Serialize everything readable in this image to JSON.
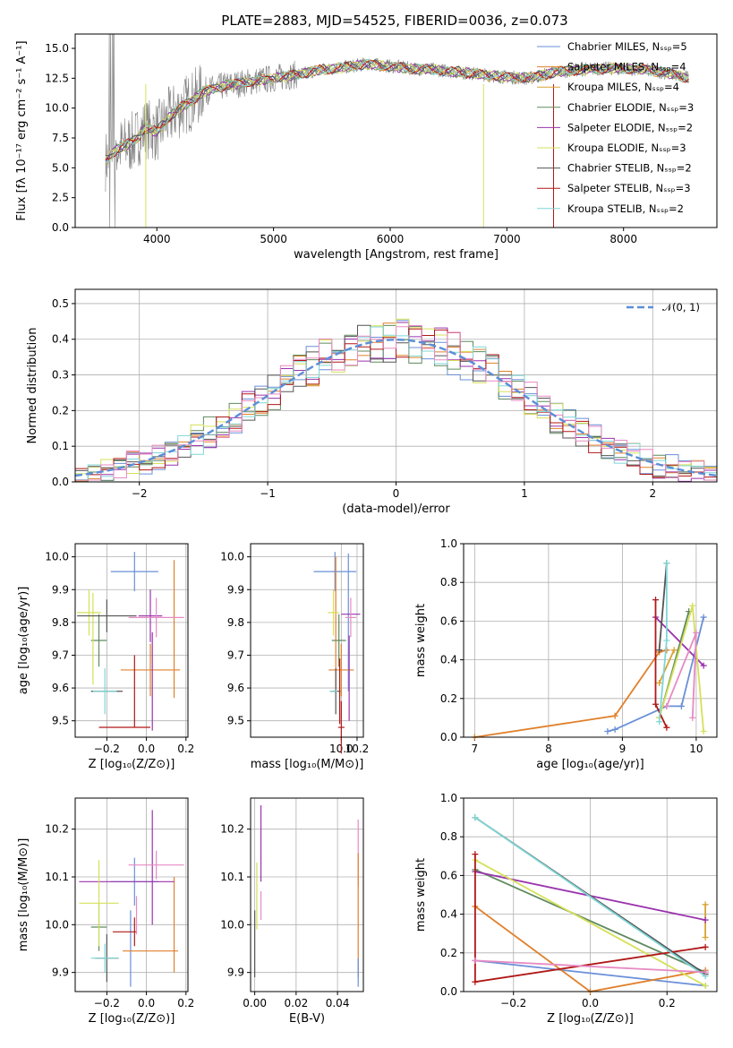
{
  "colors": {
    "c_miles": "#6a8fd8",
    "s_miles": "#e0802c",
    "k_miles": "#d9a232",
    "c_elodie": "#5f8a5f",
    "s_elodie": "#9a33ad",
    "k_elodie": "#d6e05a",
    "c_stelib": "#555555",
    "s_stelib": "#b01818",
    "k_stelib": "#7fd6d6",
    "gray_flux": "#808080",
    "hist": [
      "#6a8fd8",
      "#e0802c",
      "#5f8a5f",
      "#9a33ad",
      "#d6e05a",
      "#555555",
      "#b01818",
      "#7fd6d6",
      "#e78ac3"
    ]
  },
  "chart_data": [
    {
      "id": "spectrum",
      "type": "line",
      "title": "PLATE=2883, MJD=54525, FIBERID=0036, z=0.073",
      "xlabel": "wavelength [Angstrom, rest frame]",
      "ylabel": "Flux [fλ 10⁻¹⁷ erg cm⁻² s⁻¹ A⁻¹]",
      "xlim": [
        3300,
        8800
      ],
      "ylim": [
        0,
        16.2
      ],
      "xticks": [
        4000,
        5000,
        6000,
        7000,
        8000
      ],
      "yticks": [
        0.0,
        2.5,
        5.0,
        7.5,
        10.0,
        12.5,
        15.0
      ],
      "legend_position": "top-right",
      "series": [
        {
          "name": "Chabrier MILES, Nₛₛₚ=5"
        },
        {
          "name": "Salpeter MILES, Nₛₛₚ=4"
        },
        {
          "name": "Kroupa MILES, Nₛₛₚ=4"
        },
        {
          "name": "Chabrier ELODIE, Nₛₛₚ=3"
        },
        {
          "name": "Salpeter ELODIE, Nₛₛₚ=2"
        },
        {
          "name": "Kroupa ELODIE, Nₛₛₚ=3"
        },
        {
          "name": "Chabrier STELIB, Nₛₛₚ=2"
        },
        {
          "name": "Salpeter STELIB, Nₛₛₚ=3"
        },
        {
          "name": "Kroupa STELIB, Nₛₛₚ=2"
        }
      ],
      "continuum": {
        "x": [
          3550,
          3650,
          3800,
          3900,
          4000,
          4100,
          4200,
          4300,
          4400,
          4600,
          4800,
          5000,
          5200,
          5400,
          5600,
          5800,
          6000,
          6200,
          6400,
          6600,
          6800,
          7000,
          7200,
          7400,
          7600,
          7800,
          8000,
          8200,
          8400,
          8600
        ],
        "y": [
          5.5,
          6.5,
          7.2,
          8.3,
          8.0,
          9.2,
          10.0,
          10.6,
          11.4,
          11.9,
          12.2,
          12.5,
          12.8,
          13.2,
          13.4,
          13.7,
          13.5,
          13.3,
          13.2,
          13.0,
          12.8,
          12.6,
          12.5,
          13.0,
          13.2,
          13.3,
          13.3,
          13.2,
          12.9,
          12.4
        ]
      }
    },
    {
      "id": "residual-hist",
      "type": "histogram",
      "xlabel": "(data-model)/error",
      "ylabel": "Normed distribution",
      "xlim": [
        -2.5,
        2.5
      ],
      "ylim": [
        0,
        0.54
      ],
      "xticks": [
        -2,
        -1,
        0,
        1,
        2
      ],
      "yticks": [
        0.0,
        0.1,
        0.2,
        0.3,
        0.4,
        0.5
      ],
      "legend": "𝒩(0, 1)",
      "legend_position": "top-right",
      "bin_width": 0.1,
      "gaussian": {
        "mean": 0,
        "sigma": 1
      }
    },
    {
      "id": "age-vs-Z",
      "type": "errorbar",
      "xlabel": "Z [log₁₀(Z/Z⊙)]",
      "ylabel": "age  [log₁₀(age/yr)]",
      "xlim": [
        -0.36,
        0.21
      ],
      "ylim": [
        9.45,
        10.04
      ],
      "xticks": [
        -0.2,
        0.0,
        0.2
      ],
      "yticks": [
        9.5,
        9.6,
        9.7,
        9.8,
        9.9,
        10.0
      ],
      "points": [
        {
          "c": "c_miles",
          "x": -0.06,
          "y": 9.955,
          "xe": 0.12,
          "ye": 0.06
        },
        {
          "c": "s_miles",
          "x": 0.02,
          "y": 9.655,
          "xe": 0.15,
          "ye": 0.08
        },
        {
          "c": "s_miles",
          "x": 0.14,
          "y": 9.78,
          "xe": 0.0,
          "ye": 0.21
        },
        {
          "c": "c_elodie",
          "x": -0.24,
          "y": 9.745,
          "xe": 0.04,
          "ye": 0.08
        },
        {
          "c": "s_elodie",
          "x": 0.02,
          "y": 9.82,
          "xe": 0.06,
          "ye": 0.08
        },
        {
          "c": "s_elodie",
          "x": 0.03,
          "y": 9.62,
          "xe": 0.0,
          "ye": 0.15
        },
        {
          "c": "k_elodie",
          "x": -0.29,
          "y": 9.83,
          "xe": 0.06,
          "ye": 0.07
        },
        {
          "c": "k_elodie",
          "x": -0.27,
          "y": 9.75,
          "xe": 0.0,
          "ye": 0.14
        },
        {
          "c": "c_stelib",
          "x": -0.2,
          "y": 9.82,
          "xe": 0.15,
          "ye": 0.05
        },
        {
          "c": "c_stelib",
          "x": -0.2,
          "y": 9.59,
          "xe": 0.08,
          "ye": 0.0
        },
        {
          "c": "s_stelib",
          "x": -0.11,
          "y": 9.48,
          "xe": 0.13,
          "ye": 0.0
        },
        {
          "c": "s_stelib",
          "x": -0.06,
          "y": 9.59,
          "xe": 0.0,
          "ye": 0.11
        },
        {
          "c": "k_stelib",
          "x": -0.21,
          "y": 9.59,
          "xe": 0.06,
          "ye": 0.07
        },
        {
          "c": "hist",
          "x": 0.05,
          "y": 9.815,
          "xe": 0.14,
          "ye": 0.06
        }
      ]
    },
    {
      "id": "age-vs-mass",
      "type": "errorbar",
      "xlabel": "mass [log₁₀(M/M⊙)]",
      "ylabel": "",
      "xlim": [
        8.85,
        10.28
      ],
      "ylim": [
        9.45,
        10.04
      ],
      "xticks": [
        10.0,
        10.2
      ],
      "yticks": [
        9.5,
        9.6,
        9.7,
        9.8,
        9.9,
        10.0
      ],
      "points": [
        {
          "c": "c_miles",
          "x": 9.92,
          "y": 9.955,
          "xe": 0.27,
          "ye": 0.06
        },
        {
          "c": "c_miles",
          "x": 10.09,
          "y": 9.8,
          "xe": 0.0,
          "ye": 0.21
        },
        {
          "c": "s_miles",
          "x": 10.0,
          "y": 9.655,
          "xe": 0.16,
          "ye": 0.08
        },
        {
          "c": "s_miles",
          "x": 9.93,
          "y": 9.8,
          "xe": 0.0,
          "ye": 0.2
        },
        {
          "c": "c_elodie",
          "x": 9.97,
          "y": 9.745,
          "xe": 0.09,
          "ye": 0.08
        },
        {
          "c": "s_elodie",
          "x": 10.12,
          "y": 9.825,
          "xe": 0.12,
          "ye": 0.0
        },
        {
          "c": "s_elodie",
          "x": 10.1,
          "y": 9.63,
          "xe": 0.0,
          "ye": 0.13
        },
        {
          "c": "k_elodie",
          "x": 9.9,
          "y": 9.83,
          "xe": 0.07,
          "ye": 0.07
        },
        {
          "c": "c_stelib",
          "x": 9.93,
          "y": 9.59,
          "xe": 0.06,
          "ye": 0.07
        },
        {
          "c": "s_stelib",
          "x": 10.0,
          "y": 9.48,
          "xe": 0.04,
          "ye": 0.08
        },
        {
          "c": "s_stelib",
          "x": 9.98,
          "y": 9.59,
          "xe": 0.0,
          "ye": 0.1
        },
        {
          "c": "k_stelib",
          "x": 9.9,
          "y": 9.59,
          "xe": 0.05,
          "ye": 0.0
        },
        {
          "c": "hist",
          "x": 10.12,
          "y": 9.815,
          "xe": 0.07,
          "ye": 0.06
        }
      ]
    },
    {
      "id": "mass-vs-Z",
      "type": "errorbar",
      "xlabel": "Z [log₁₀(Z/Z⊙)]",
      "ylabel": "mass [log₁₀(M/M⊙)]",
      "xlim": [
        -0.36,
        0.21
      ],
      "ylim": [
        9.86,
        10.265
      ],
      "xticks": [
        -0.2,
        0.0,
        0.2
      ],
      "yticks": [
        9.9,
        10.0,
        10.1,
        10.2
      ],
      "points": [
        {
          "c": "c_miles",
          "x": -0.06,
          "y": 10.09,
          "xe": 0.12,
          "ye": 0.05
        },
        {
          "c": "c_miles",
          "x": -0.08,
          "y": 9.95,
          "xe": 0.0,
          "ye": 0.08
        },
        {
          "c": "s_miles",
          "x": 0.02,
          "y": 9.945,
          "xe": 0.14,
          "ye": 0.0
        },
        {
          "c": "s_miles",
          "x": 0.14,
          "y": 10.0,
          "xe": 0.0,
          "ye": 0.1
        },
        {
          "c": "c_elodie",
          "x": -0.24,
          "y": 9.995,
          "xe": 0.04,
          "ye": 0.05
        },
        {
          "c": "s_elodie",
          "x": -0.1,
          "y": 10.09,
          "xe": 0.24,
          "ye": 0.0
        },
        {
          "c": "s_elodie",
          "x": 0.03,
          "y": 10.12,
          "xe": 0.0,
          "ye": 0.12
        },
        {
          "c": "k_elodie",
          "x": -0.24,
          "y": 10.045,
          "xe": 0.1,
          "ye": 0.09
        },
        {
          "c": "c_stelib",
          "x": -0.2,
          "y": 9.93,
          "xe": 0.06,
          "ye": 0.05
        },
        {
          "c": "s_stelib",
          "x": -0.11,
          "y": 9.985,
          "xe": 0.06,
          "ye": 0.0
        },
        {
          "c": "s_stelib",
          "x": -0.06,
          "y": 9.985,
          "xe": 0.0,
          "ye": 0.03
        },
        {
          "c": "k_stelib",
          "x": -0.21,
          "y": 9.93,
          "xe": 0.07,
          "ye": 0.03
        },
        {
          "c": "hist",
          "x": 0.05,
          "y": 10.125,
          "xe": 0.14,
          "ye": 0.03
        },
        {
          "c": "hist",
          "x": -0.05,
          "y": 10.02,
          "xe": 0.0,
          "ye": 0.04
        }
      ]
    },
    {
      "id": "mass-vs-EBV",
      "type": "errorbar",
      "xlabel": "E(B-V)",
      "ylabel": "",
      "xlim": [
        -0.002,
        0.0525
      ],
      "ylim": [
        9.86,
        10.265
      ],
      "xticks": [
        0.0,
        0.02,
        0.04
      ],
      "yticks": [
        9.9,
        10.0,
        10.1,
        10.2
      ],
      "points": [
        {
          "c": "c_stelib",
          "x": 0.0,
          "y": 9.96,
          "xe": 0,
          "ye": 0.07
        },
        {
          "c": "k_elodie",
          "x": 0.001,
          "y": 10.06,
          "xe": 0,
          "ye": 0.07
        },
        {
          "c": "s_elodie",
          "x": 0.003,
          "y": 10.17,
          "xe": 0,
          "ye": 0.08
        },
        {
          "c": "hist",
          "x": 0.003,
          "y": 10.04,
          "xe": 0,
          "ye": 0.03
        },
        {
          "c": "hist",
          "x": 0.05,
          "y": 10.15,
          "xe": 0,
          "ye": 0.07
        },
        {
          "c": "s_miles",
          "x": 0.05,
          "y": 10.02,
          "xe": 0,
          "ye": 0.13
        },
        {
          "c": "c_miles",
          "x": 0.05,
          "y": 9.9,
          "xe": 0,
          "ye": 0.03
        }
      ]
    },
    {
      "id": "weight-vs-age",
      "type": "line",
      "xlabel": "age  [log₁₀(age/yr)]",
      "ylabel": "mass weight",
      "xlim": [
        6.85,
        10.28
      ],
      "ylim": [
        0,
        1.0
      ],
      "xticks": [
        7,
        8,
        9,
        10
      ],
      "yticks": [
        0.0,
        0.2,
        0.4,
        0.6,
        0.8,
        1.0
      ],
      "series": [
        {
          "c": "c_miles",
          "x": [
            8.8,
            8.9,
            9.6,
            9.8,
            10.1
          ],
          "y": [
            0.03,
            0.04,
            0.16,
            0.16,
            0.62
          ]
        },
        {
          "c": "s_miles",
          "x": [
            7.0,
            8.9,
            9.5,
            9.6
          ],
          "y": [
            0.0,
            0.11,
            0.44,
            0.45
          ]
        },
        {
          "c": "k_miles",
          "x": [
            9.5,
            9.7
          ],
          "y": [
            0.28,
            0.45
          ]
        },
        {
          "c": "c_elodie",
          "x": [
            9.5,
            9.9
          ],
          "y": [
            0.1,
            0.65
          ]
        },
        {
          "c": "s_elodie",
          "x": [
            9.45,
            10.1
          ],
          "y": [
            0.62,
            0.37
          ]
        },
        {
          "c": "k_elodie",
          "x": [
            9.5,
            9.95,
            10.1
          ],
          "y": [
            0.1,
            0.68,
            0.03
          ]
        },
        {
          "c": "c_stelib",
          "x": [
            9.5,
            9.6
          ],
          "y": [
            0.45,
            0.9
          ]
        },
        {
          "c": "s_stelib",
          "x": [
            9.45,
            9.45,
            9.6
          ],
          "y": [
            0.71,
            0.17,
            0.05
          ]
        },
        {
          "c": "k_stelib",
          "x": [
            9.5,
            9.6,
            9.6
          ],
          "y": [
            0.08,
            0.5,
            0.9
          ]
        },
        {
          "c": "hist",
          "x": [
            9.6,
            10.0,
            9.95
          ],
          "y": [
            0.16,
            0.54,
            0.1
          ]
        }
      ]
    },
    {
      "id": "weight-vs-Z",
      "type": "line",
      "xlabel": "Z [log₁₀(Z/Z⊙)]",
      "ylabel": "mass weight",
      "xlim": [
        -0.33,
        0.33
      ],
      "ylim": [
        0,
        1.0
      ],
      "xticks": [
        -0.2,
        0.0,
        0.2
      ],
      "yticks": [
        0.0,
        0.2,
        0.4,
        0.6,
        0.8,
        1.0
      ],
      "series": [
        {
          "c": "c_miles",
          "x": [
            -0.3,
            0.3
          ],
          "y": [
            0.16,
            0.03
          ]
        },
        {
          "c": "s_miles",
          "x": [
            -0.3,
            0.0,
            0.3
          ],
          "y": [
            0.44,
            0.0,
            0.11
          ]
        },
        {
          "c": "k_miles",
          "x": [
            0.3,
            0.3
          ],
          "y": [
            0.28,
            0.45
          ]
        },
        {
          "c": "c_elodie",
          "x": [
            -0.3,
            0.3
          ],
          "y": [
            0.63,
            0.1
          ]
        },
        {
          "c": "s_elodie",
          "x": [
            -0.3,
            0.3
          ],
          "y": [
            0.62,
            0.37
          ]
        },
        {
          "c": "k_elodie",
          "x": [
            -0.3,
            0.3
          ],
          "y": [
            0.68,
            0.03
          ]
        },
        {
          "c": "c_stelib",
          "x": [
            -0.3,
            0.3
          ],
          "y": [
            0.9,
            0.09
          ]
        },
        {
          "c": "s_stelib",
          "x": [
            -0.3,
            -0.3,
            0.3
          ],
          "y": [
            0.71,
            0.05,
            0.23
          ]
        },
        {
          "c": "k_stelib",
          "x": [
            -0.3,
            0.3
          ],
          "y": [
            0.9,
            0.08
          ]
        },
        {
          "c": "hist",
          "x": [
            -0.3,
            0.3
          ],
          "y": [
            0.16,
            0.1
          ]
        }
      ]
    }
  ]
}
